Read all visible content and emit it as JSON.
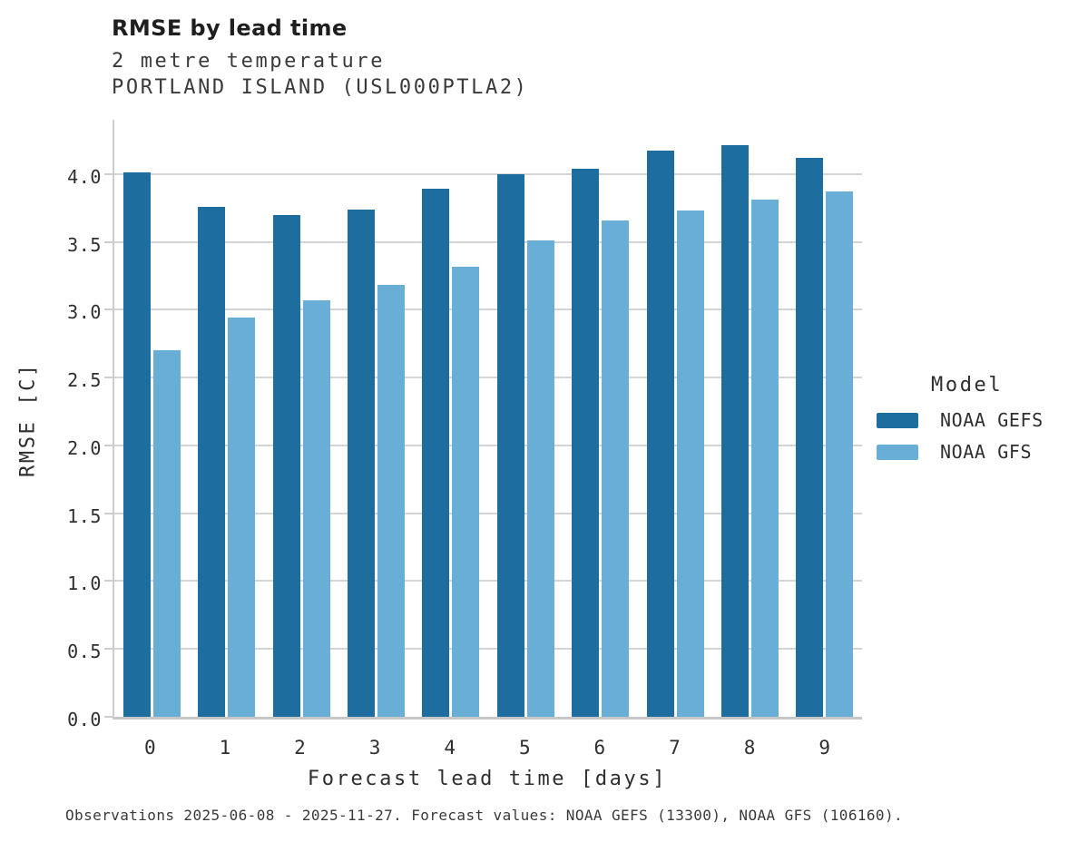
{
  "chart_data": {
    "type": "bar",
    "title": "RMSE by lead time",
    "subtitle": "2 metre temperature",
    "station": "PORTLAND ISLAND (USL000PTLA2)",
    "categories": [
      "0",
      "1",
      "2",
      "3",
      "4",
      "5",
      "6",
      "7",
      "8",
      "9"
    ],
    "series": [
      {
        "name": "NOAA GEFS",
        "color": "#1d6e9e",
        "values": [
          4.01,
          3.76,
          3.7,
          3.74,
          3.89,
          4.0,
          4.04,
          4.17,
          4.21,
          4.12
        ]
      },
      {
        "name": "NOAA GFS",
        "color": "#69aed7",
        "values": [
          2.7,
          2.94,
          3.07,
          3.18,
          3.32,
          3.51,
          3.66,
          3.73,
          3.81,
          3.87
        ]
      }
    ],
    "xlabel": "Forecast lead time [days]",
    "ylabel": "RMSE [C]",
    "ylim": [
      0,
      4.42
    ],
    "yticks": [
      0.0,
      0.5,
      1.0,
      1.5,
      2.0,
      2.5,
      3.0,
      3.5,
      4.0
    ],
    "grid": "horizontal",
    "legend": {
      "title": "Model",
      "position": "right"
    }
  },
  "footer": {
    "caption": "Observations 2025-06-08 - 2025-11-27. Forecast values: NOAA GEFS (13300), NOAA GFS (106160)."
  }
}
